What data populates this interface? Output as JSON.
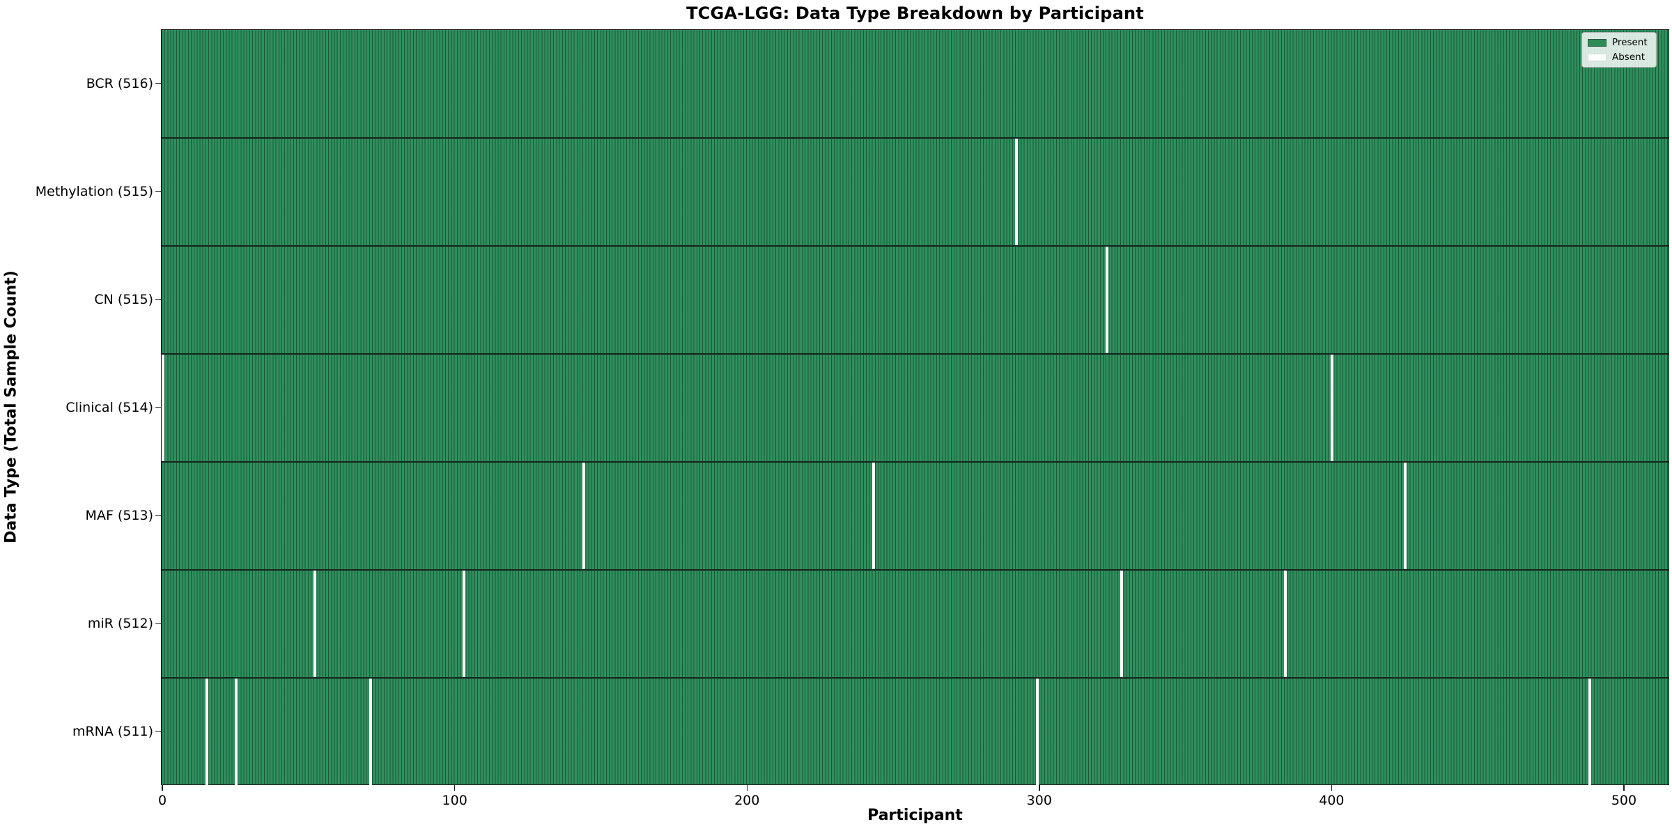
{
  "figure": {
    "title": "TCGA-LGG: Data Type Breakdown by Participant",
    "xlabel": "Participant",
    "ylabel": "Data Type (Total Sample Count)"
  },
  "legend": {
    "present_label": "Present",
    "absent_label": "Absent"
  },
  "colors": {
    "present_fill": "#2f8f5d",
    "cell_edge": "rgba(10,45,28,0.55)",
    "absent_fill": "#ffffff",
    "row_divider": "#14241b",
    "plot_border": "#1a1a1a",
    "legend_bg": "rgba(255,255,255,0.82)",
    "legend_border": "#b3b3b3",
    "legend_swatch_present": "#2e8b57",
    "legend_swatch_absent": "#ffffff"
  },
  "chart_data": {
    "type": "heatmap",
    "title": "TCGA-LGG: Data Type Breakdown by Participant",
    "xlabel": "Participant",
    "ylabel": "Data Type (Total Sample Count)",
    "legend": [
      "Present",
      "Absent"
    ],
    "legend_position": "upper right",
    "n_participants": 516,
    "x_ticks": [
      0,
      100,
      200,
      300,
      400,
      500
    ],
    "rows": [
      {
        "label": "BCR (516)",
        "data_type": "BCR",
        "total": 516,
        "absent_participants": []
      },
      {
        "label": "Methylation (515)",
        "data_type": "Methylation",
        "total": 515,
        "absent_participants": [
          292
        ]
      },
      {
        "label": "CN (515)",
        "data_type": "CN",
        "total": 515,
        "absent_participants": [
          323
        ]
      },
      {
        "label": "Clinical (514)",
        "data_type": "Clinical",
        "total": 514,
        "absent_participants": [
          0,
          400
        ]
      },
      {
        "label": "MAF (513)",
        "data_type": "MAF",
        "total": 513,
        "absent_participants": [
          144,
          243,
          425
        ]
      },
      {
        "label": "miR (512)",
        "data_type": "miR",
        "total": 512,
        "absent_participants": [
          52,
          103,
          328,
          384
        ]
      },
      {
        "label": "mRNA (511)",
        "data_type": "mRNA",
        "total": 511,
        "absent_participants": [
          15,
          25,
          71,
          299,
          488
        ]
      }
    ]
  }
}
